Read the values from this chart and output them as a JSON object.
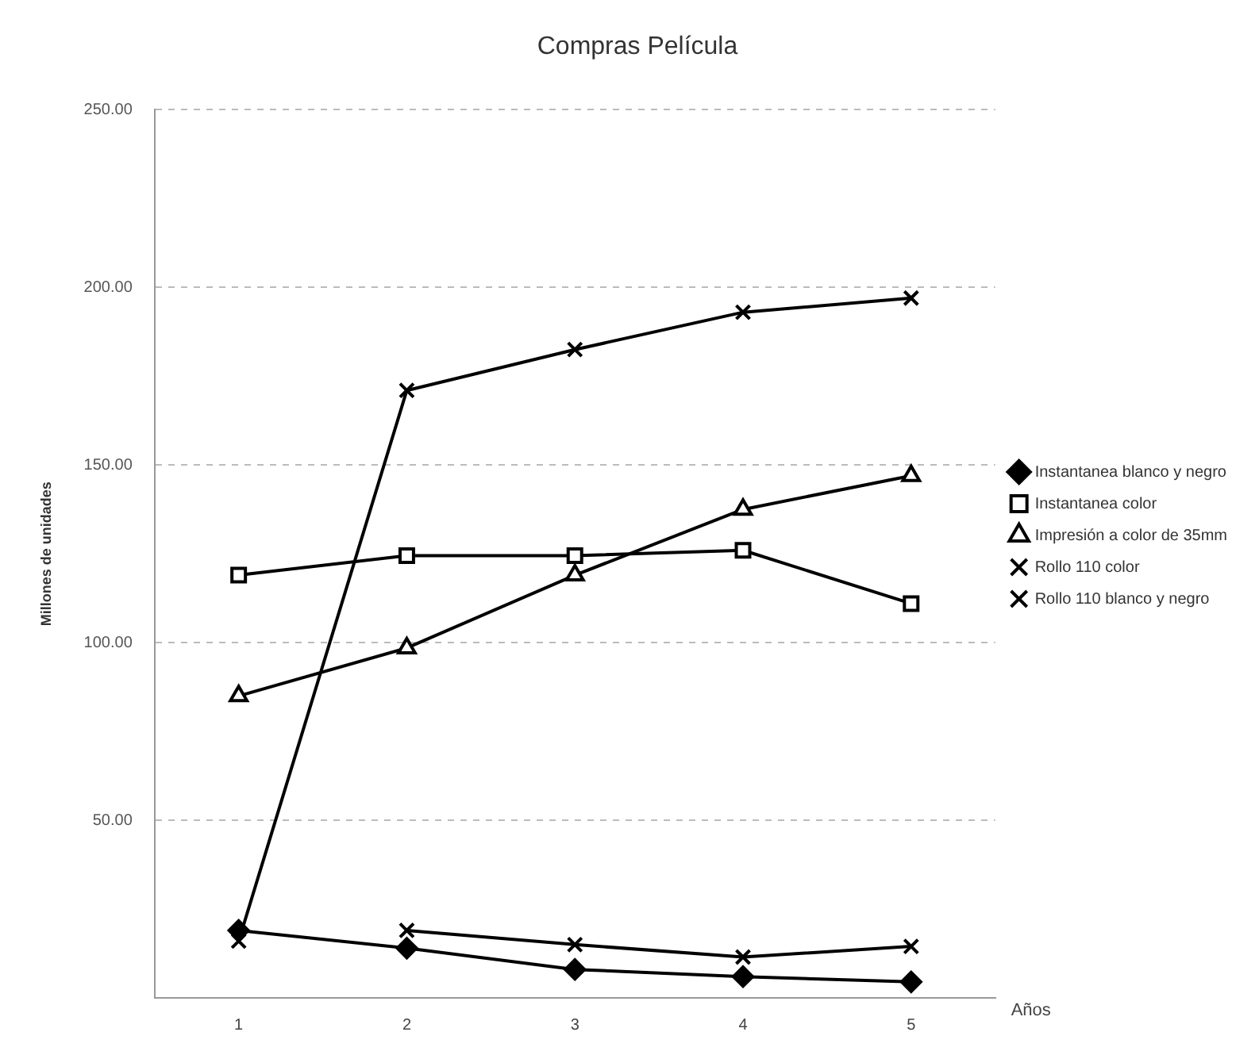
{
  "chart_data": {
    "type": "line",
    "title": "Compras Película",
    "xlabel": "Años",
    "ylabel": "Millones de unidades",
    "categories": [
      "1",
      "2",
      "3",
      "4",
      "5"
    ],
    "series": [
      {
        "name": "Instantanea blanco y negro",
        "color": "#000000",
        "marker": "diamond",
        "values": [
          19,
          14,
          8,
          6,
          4.5
        ]
      },
      {
        "name": "Instantanea color",
        "color": "#000000",
        "marker": "square",
        "values": [
          119,
          124.5,
          124.5,
          126,
          111
        ]
      },
      {
        "name": "Impresión a color de 35mm",
        "color": "#000000",
        "marker": "triangle",
        "values": [
          85,
          98.5,
          119,
          137.5,
          147
        ]
      },
      {
        "name": "Rollo 110 color",
        "color": "#000000",
        "marker": "cross",
        "values": [
          16,
          171,
          182.5,
          193,
          197
        ]
      },
      {
        "name": "Rollo 110 blanco y negro",
        "color": "#000000",
        "marker": "cross",
        "values": [
          null,
          19,
          15,
          11.5,
          14.5
        ]
      }
    ],
    "ylim": [
      0,
      250
    ],
    "yticks": [
      {
        "value": 0,
        "label": null
      },
      {
        "value": 50,
        "label": "50.00"
      },
      {
        "value": 100,
        "label": "100.00"
      },
      {
        "value": 150,
        "label": "150.00"
      },
      {
        "value": 200,
        "label": "200.00"
      },
      {
        "value": 250,
        "label": "250.00"
      }
    ],
    "grid": "y",
    "legend": "right",
    "line_style": "solid"
  }
}
